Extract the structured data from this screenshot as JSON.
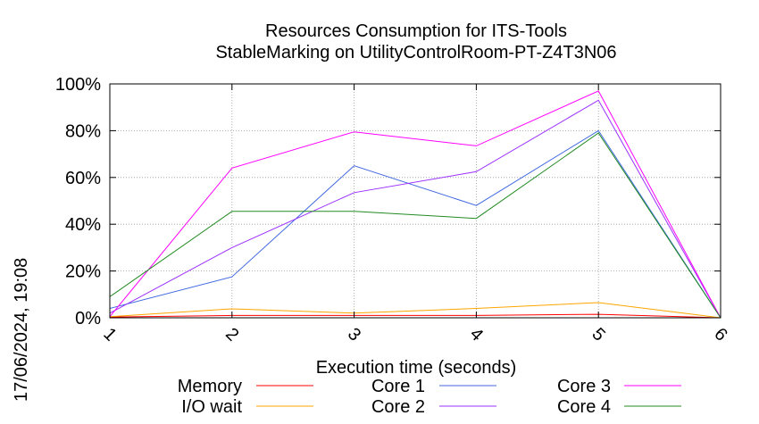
{
  "chart_data": {
    "type": "line",
    "title": [
      "Resources Consumption for ITS-Tools",
      "StableMarking on UtilityControlRoom-PT-Z4T3N06"
    ],
    "xlabel": "Execution time (seconds)",
    "ylabel": "",
    "side_label": "17/06/2024, 19:08",
    "x": [
      1,
      2,
      3,
      4,
      5,
      6
    ],
    "xlim": [
      1,
      6
    ],
    "ylim": [
      0,
      100
    ],
    "x_ticks": [
      "1",
      "2",
      "3",
      "4",
      "5",
      "6"
    ],
    "y_ticks": [
      {
        "v": 0,
        "label": "0%"
      },
      {
        "v": 20,
        "label": "20%"
      },
      {
        "v": 40,
        "label": "40%"
      },
      {
        "v": 60,
        "label": "60%"
      },
      {
        "v": 80,
        "label": "80%"
      },
      {
        "v": 100,
        "label": "100%"
      }
    ],
    "grid": true,
    "legend_position": "bottom",
    "series": [
      {
        "name": "Memory",
        "color": "#ff0000",
        "values": [
          0.3,
          1.0,
          1.0,
          1.0,
          1.5,
          0
        ]
      },
      {
        "name": "I/O wait",
        "color": "#ffa500",
        "values": [
          0.5,
          3.8,
          2.0,
          4.0,
          6.5,
          0
        ]
      },
      {
        "name": "Core 1",
        "color": "#4169e1",
        "values": [
          4,
          17.5,
          65,
          48,
          80,
          0
        ]
      },
      {
        "name": "Core 2",
        "color": "#9b30ff",
        "values": [
          2,
          30,
          53.5,
          62.5,
          93,
          0
        ]
      },
      {
        "name": "Core 3",
        "color": "#ff00ff",
        "values": [
          0.5,
          64,
          79.5,
          73.5,
          97,
          0
        ]
      },
      {
        "name": "Core 4",
        "color": "#228b22",
        "values": [
          9,
          45.5,
          45.5,
          42.5,
          79,
          0
        ]
      }
    ]
  }
}
